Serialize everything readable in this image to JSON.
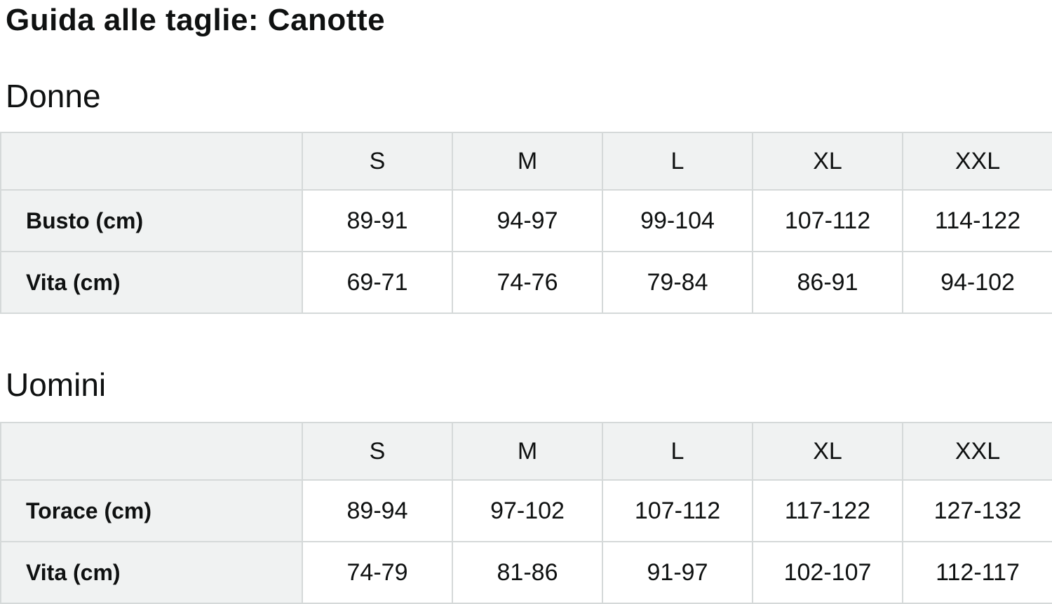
{
  "page": {
    "title": "Guida alle taglie: Canotte"
  },
  "colors": {
    "cell_header_bg": "#f0f2f2",
    "border": "#d5d9d9",
    "text": "#0f1111",
    "page_bg": "#ffffff"
  },
  "sections": [
    {
      "heading": "Donne",
      "table": {
        "columns": [
          "",
          "S",
          "M",
          "L",
          "XL",
          "XXL"
        ],
        "rows": [
          {
            "label": "Busto (cm)",
            "values": [
              "89-91",
              "94-97",
              "99-104",
              "107-112",
              "114-122"
            ]
          },
          {
            "label": "Vita (cm)",
            "values": [
              "69-71",
              "74-76",
              "79-84",
              "86-91",
              "94-102"
            ]
          }
        ]
      }
    },
    {
      "heading": "Uomini",
      "table": {
        "columns": [
          "",
          "S",
          "M",
          "L",
          "XL",
          "XXL"
        ],
        "rows": [
          {
            "label": "Torace (cm)",
            "values": [
              "89-94",
              "97-102",
              "107-112",
              "117-122",
              "127-132"
            ]
          },
          {
            "label": "Vita (cm)",
            "values": [
              "74-79",
              "81-86",
              "91-97",
              "102-107",
              "112-117"
            ]
          }
        ]
      }
    }
  ]
}
